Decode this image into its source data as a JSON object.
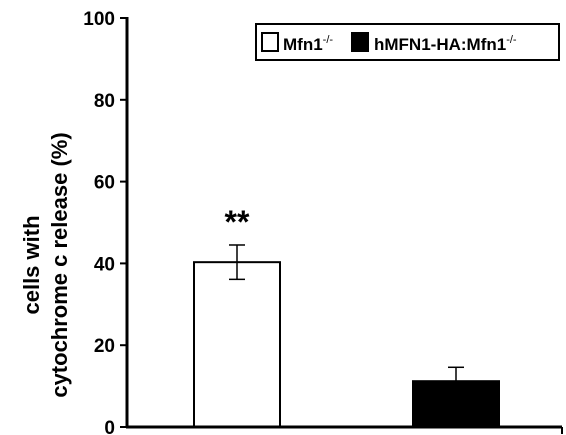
{
  "chart_data": {
    "type": "bar",
    "title": "",
    "xlabel": "",
    "ylabel_lines": [
      "cells with",
      "cytochrome c release (%)"
    ],
    "ylim": [
      0,
      100
    ],
    "yticks": [
      0,
      20,
      40,
      60,
      80,
      100
    ],
    "grid": false,
    "legend_position": "top-right",
    "series": [
      {
        "name": "Mfn1",
        "name_superscript": "-/-",
        "value": 40.3,
        "error": 4.2,
        "fill": "#ffffff",
        "annotation": "**"
      },
      {
        "name": "hMFN1-HA:Mfn1",
        "name_superscript": "-/-",
        "value": 11.2,
        "error": 3.4,
        "fill": "#000000",
        "annotation": ""
      }
    ]
  }
}
